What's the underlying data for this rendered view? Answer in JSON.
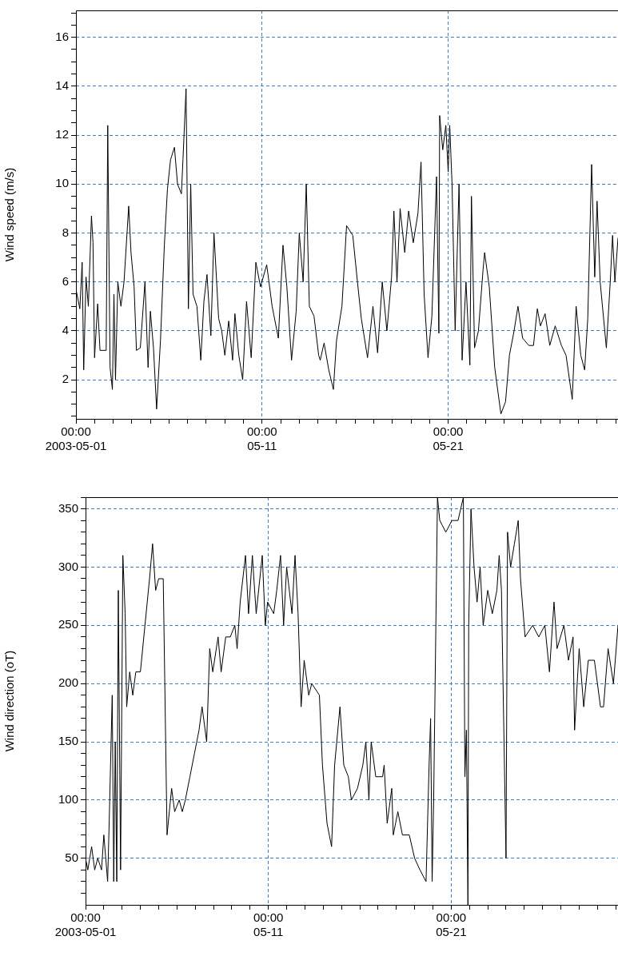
{
  "chart_data": [
    {
      "type": "line",
      "ylabel": "Wind speed (m/s)",
      "color": "#000000",
      "marker": "none",
      "line_style": "solid",
      "grid": true,
      "xlim": [
        "2003-05-01T00:00",
        "2003-05-30T03:00"
      ],
      "ylim": [
        0.4,
        17.1
      ],
      "xticks": [
        {
          "value": "2003-05-01T00:00",
          "label": "00:00\n2003-05-01"
        },
        {
          "value": "2003-05-02T00:00",
          "label": null
        },
        {
          "value": "2003-05-03T00:00",
          "label": null
        },
        {
          "value": "2003-05-04T00:00",
          "label": null
        },
        {
          "value": "2003-05-05T00:00",
          "label": null
        },
        {
          "value": "2003-05-06T00:00",
          "label": null
        },
        {
          "value": "2003-05-07T00:00",
          "label": null
        },
        {
          "value": "2003-05-08T00:00",
          "label": null
        },
        {
          "value": "2003-05-09T00:00",
          "label": null
        },
        {
          "value": "2003-05-10T00:00",
          "label": null
        },
        {
          "value": "2003-05-11T00:00",
          "label": "00:00\n05-11"
        },
        {
          "value": "2003-05-12T00:00",
          "label": null
        },
        {
          "value": "2003-05-13T00:00",
          "label": null
        },
        {
          "value": "2003-05-14T00:00",
          "label": null
        },
        {
          "value": "2003-05-15T00:00",
          "label": null
        },
        {
          "value": "2003-05-16T00:00",
          "label": null
        },
        {
          "value": "2003-05-17T00:00",
          "label": null
        },
        {
          "value": "2003-05-18T00:00",
          "label": null
        },
        {
          "value": "2003-05-19T00:00",
          "label": null
        },
        {
          "value": "2003-05-20T00:00",
          "label": null
        },
        {
          "value": "2003-05-21T00:00",
          "label": "00:00\n05-21"
        },
        {
          "value": "2003-05-22T00:00",
          "label": null
        },
        {
          "value": "2003-05-23T00:00",
          "label": null
        },
        {
          "value": "2003-05-24T00:00",
          "label": null
        },
        {
          "value": "2003-05-25T00:00",
          "label": null
        },
        {
          "value": "2003-05-26T00:00",
          "label": null
        },
        {
          "value": "2003-05-27T00:00",
          "label": null
        },
        {
          "value": "2003-05-28T00:00",
          "label": null
        },
        {
          "value": "2003-05-29T00:00",
          "label": null
        },
        {
          "value": "2003-05-30T00:00",
          "label": null
        }
      ],
      "yticks": [
        {
          "value": 0.5,
          "label": null
        },
        {
          "value": 1,
          "label": null
        },
        {
          "value": 1.5,
          "label": null
        },
        2,
        {
          "value": 2.5,
          "label": null
        },
        {
          "value": 3,
          "label": null
        },
        {
          "value": 3.5,
          "label": null
        },
        4,
        {
          "value": 4.5,
          "label": null
        },
        {
          "value": 5,
          "label": null
        },
        {
          "value": 5.5,
          "label": null
        },
        6,
        {
          "value": 6.5,
          "label": null
        },
        {
          "value": 7,
          "label": null
        },
        {
          "value": 7.5,
          "label": null
        },
        8,
        {
          "value": 8.5,
          "label": null
        },
        {
          "value": 9,
          "label": null
        },
        {
          "value": 9.5,
          "label": null
        },
        10,
        {
          "value": 10.5,
          "label": null
        },
        {
          "value": 11,
          "label": null
        },
        {
          "value": 11.5,
          "label": null
        },
        12,
        {
          "value": 12.5,
          "label": null
        },
        {
          "value": 13,
          "label": null
        },
        {
          "value": 13.5,
          "label": null
        },
        14,
        {
          "value": 14.5,
          "label": null
        },
        {
          "value": 15,
          "label": null
        },
        {
          "value": 15.5,
          "label": null
        },
        16,
        {
          "value": 16.5,
          "label": null
        },
        {
          "value": 17,
          "label": null
        }
      ],
      "x": [
        "2003-05-01T00:00",
        "2003-05-01T05:00",
        "2003-05-01T08:00",
        "2003-05-01T10:00",
        "2003-05-01T13:00",
        "2003-05-01T16:00",
        "2003-05-01T20:00",
        "2003-05-01T22:00",
        "2003-05-02T00:00",
        "2003-05-02T04:00",
        "2003-05-02T07:00",
        "2003-05-02T15:00",
        "2003-05-02T17:00",
        "2003-05-02T20:00",
        "2003-05-02T23:00",
        "2003-05-03T01:00",
        "2003-05-03T03:00",
        "2003-05-03T06:00",
        "2003-05-03T10:00",
        "2003-05-03T14:00",
        "2003-05-03T20:00",
        "2003-05-03T23:00",
        "2003-05-04T03:00",
        "2003-05-04T06:00",
        "2003-05-04T11:00",
        "2003-05-04T17:00",
        "2003-05-04T21:00",
        "2003-05-05T00:00",
        "2003-05-05T04:00",
        "2003-05-05T08:00",
        "2003-05-05T13:00",
        "2003-05-05T18:00",
        "2003-05-05T22:00",
        "2003-05-06T02:00",
        "2003-05-06T07:00",
        "2003-05-06T11:00",
        "2003-05-06T16:00",
        "2003-05-06T18:00",
        "2003-05-06T22:00",
        "2003-05-07T01:00",
        "2003-05-07T04:00",
        "2003-05-07T07:00",
        "2003-05-07T12:00",
        "2003-05-07T17:00",
        "2003-05-07T21:00",
        "2003-05-08T01:00",
        "2003-05-08T06:00",
        "2003-05-08T10:00",
        "2003-05-08T16:00",
        "2003-05-08T20:00",
        "2003-05-09T00:00",
        "2003-05-09T05:00",
        "2003-05-09T10:00",
        "2003-05-09T13:00",
        "2003-05-09T18:00",
        "2003-05-09T23:00",
        "2003-05-10T04:00",
        "2003-05-10T10:00",
        "2003-05-10T16:00",
        "2003-05-10T22:00",
        "2003-05-11T06:00",
        "2003-05-11T13:00",
        "2003-05-11T21:00",
        "2003-05-12T03:00",
        "2003-05-12T08:00",
        "2003-05-12T14:00",
        "2003-05-12T20:00",
        "2003-05-13T00:00",
        "2003-05-13T05:00",
        "2003-05-13T09:00",
        "2003-05-13T13:00",
        "2003-05-13T19:00",
        "2003-05-14T01:00",
        "2003-05-14T03:00",
        "2003-05-14T08:00",
        "2003-05-14T14:00",
        "2003-05-14T20:00",
        "2003-05-15T00:00",
        "2003-05-15T07:00",
        "2003-05-15T13:00",
        "2003-05-15T21:00",
        "2003-05-16T03:00",
        "2003-05-16T08:00",
        "2003-05-16T16:00",
        "2003-05-16T23:00",
        "2003-05-17T05:00",
        "2003-05-17T11:00",
        "2003-05-17T17:00",
        "2003-05-17T23:00",
        "2003-05-18T02:00",
        "2003-05-18T06:00",
        "2003-05-18T10:00",
        "2003-05-18T16:00",
        "2003-05-18T21:00",
        "2003-05-19T03:00",
        "2003-05-19T09:00",
        "2003-05-19T13:00",
        "2003-05-19T17:00",
        "2003-05-19T22:00",
        "2003-05-20T03:00",
        "2003-05-20T09:00",
        "2003-05-20T12:00",
        "2003-05-20T13:00",
        "2003-05-20T17:00",
        "2003-05-20T21:00",
        "2003-05-21T00:00",
        "2003-05-21T02:00",
        "2003-05-21T05:00",
        "2003-05-21T09:00",
        "2003-05-21T14:00",
        "2003-05-21T18:00",
        "2003-05-21T23:00",
        "2003-05-22T04:00",
        "2003-05-22T06:00",
        "2003-05-22T10:00",
        "2003-05-22T15:00",
        "2003-05-22T21:00",
        "2003-05-22T23:00",
        "2003-05-23T05:00",
        "2003-05-23T12:00",
        "2003-05-23T20:00",
        "2003-05-24T02:00",
        "2003-05-24T07:00",
        "2003-05-24T13:00",
        "2003-05-24T18:00",
        "2003-05-25T00:00",
        "2003-05-25T08:00",
        "2003-05-25T14:00",
        "2003-05-25T19:00",
        "2003-05-25T23:00",
        "2003-05-26T05:00",
        "2003-05-26T11:00",
        "2003-05-26T18:00",
        "2003-05-27T02:00",
        "2003-05-27T08:00",
        "2003-05-27T16:00",
        "2003-05-27T21:00",
        "2003-05-28T03:00",
        "2003-05-28T08:00",
        "2003-05-28T12:00",
        "2003-05-28T17:00",
        "2003-05-28T21:00",
        "2003-05-29T00:00",
        "2003-05-29T04:00",
        "2003-05-29T12:00",
        "2003-05-29T17:00",
        "2003-05-29T20:00",
        "2003-05-29T23:00",
        "2003-05-30T03:00"
      ],
      "values": [
        5.7,
        4.9,
        6.8,
        2.4,
        6.2,
        5.0,
        8.7,
        7.6,
        2.9,
        5.1,
        3.2,
        3.2,
        12.4,
        2.5,
        1.6,
        5.5,
        2.0,
        6.0,
        5.0,
        6.0,
        9.1,
        7.2,
        5.8,
        3.2,
        3.3,
        6.0,
        2.5,
        4.8,
        3.3,
        0.8,
        3.6,
        7.5,
        9.8,
        11.0,
        11.5,
        10.0,
        9.6,
        11.0,
        13.9,
        4.9,
        10.0,
        5.5,
        5.0,
        2.8,
        5.2,
        6.3,
        3.8,
        8.0,
        4.5,
        4.0,
        3.0,
        4.4,
        2.8,
        4.7,
        3.0,
        2.0,
        5.2,
        2.9,
        6.8,
        5.8,
        6.7,
        5.0,
        3.7,
        7.5,
        5.8,
        2.8,
        4.8,
        8.0,
        6.0,
        10.0,
        5.0,
        4.6,
        3.0,
        2.8,
        3.5,
        2.4,
        1.6,
        3.6,
        5.0,
        8.3,
        7.9,
        6.0,
        4.5,
        2.9,
        5.0,
        3.1,
        6.0,
        4.0,
        6.2,
        8.9,
        6.0,
        9.0,
        7.2,
        8.9,
        7.6,
        8.8,
        10.9,
        5.5,
        2.9,
        4.6,
        10.3,
        3.9,
        12.8,
        11.4,
        12.4,
        10.5,
        12.4,
        10.0,
        4.0,
        10.0,
        2.8,
        6.0,
        2.6,
        9.5,
        3.3,
        4.0,
        6.5,
        7.2,
        5.8,
        2.5,
        0.6,
        1.1,
        3.0,
        4.0,
        5.0,
        3.7,
        3.4,
        3.4,
        4.9,
        4.2,
        4.7,
        3.4,
        4.2,
        3.4,
        3.0,
        1.2,
        5.0,
        3.0,
        2.4,
        4.5,
        10.8,
        6.2,
        9.3,
        6.0,
        3.3,
        6.0,
        7.9,
        6.0,
        7.8
      ]
    },
    {
      "type": "line",
      "ylabel": "Wind direction (oT)",
      "color": "#000000",
      "marker": "none",
      "line_style": "solid",
      "grid": true,
      "xlim": [
        "2003-05-01T00:00",
        "2003-05-30T03:00"
      ],
      "ylim": [
        10,
        360
      ],
      "xticks": [
        {
          "value": "2003-05-01T00:00",
          "label": "00:00\n2003-05-01"
        },
        {
          "value": "2003-05-02T00:00",
          "label": null
        },
        {
          "value": "2003-05-03T00:00",
          "label": null
        },
        {
          "value": "2003-05-04T00:00",
          "label": null
        },
        {
          "value": "2003-05-05T00:00",
          "label": null
        },
        {
          "value": "2003-05-06T00:00",
          "label": null
        },
        {
          "value": "2003-05-07T00:00",
          "label": null
        },
        {
          "value": "2003-05-08T00:00",
          "label": null
        },
        {
          "value": "2003-05-09T00:00",
          "label": null
        },
        {
          "value": "2003-05-10T00:00",
          "label": null
        },
        {
          "value": "2003-05-11T00:00",
          "label": "00:00\n05-11"
        },
        {
          "value": "2003-05-12T00:00",
          "label": null
        },
        {
          "value": "2003-05-13T00:00",
          "label": null
        },
        {
          "value": "2003-05-14T00:00",
          "label": null
        },
        {
          "value": "2003-05-15T00:00",
          "label": null
        },
        {
          "value": "2003-05-16T00:00",
          "label": null
        },
        {
          "value": "2003-05-17T00:00",
          "label": null
        },
        {
          "value": "2003-05-18T00:00",
          "label": null
        },
        {
          "value": "2003-05-19T00:00",
          "label": null
        },
        {
          "value": "2003-05-20T00:00",
          "label": null
        },
        {
          "value": "2003-05-21T00:00",
          "label": "00:00\n05-21"
        },
        {
          "value": "2003-05-22T00:00",
          "label": null
        },
        {
          "value": "2003-05-23T00:00",
          "label": null
        },
        {
          "value": "2003-05-24T00:00",
          "label": null
        },
        {
          "value": "2003-05-25T00:00",
          "label": null
        },
        {
          "value": "2003-05-26T00:00",
          "label": null
        },
        {
          "value": "2003-05-27T00:00",
          "label": null
        },
        {
          "value": "2003-05-28T00:00",
          "label": null
        },
        {
          "value": "2003-05-29T00:00",
          "label": null
        },
        {
          "value": "2003-05-30T00:00",
          "label": null
        }
      ],
      "yticks": [
        {
          "value": 20,
          "label": null
        },
        {
          "value": 30,
          "label": null
        },
        {
          "value": 40,
          "label": null
        },
        50,
        {
          "value": 60,
          "label": null
        },
        {
          "value": 70,
          "label": null
        },
        {
          "value": 80,
          "label": null
        },
        {
          "value": 90,
          "label": null
        },
        100,
        {
          "value": 110,
          "label": null
        },
        {
          "value": 120,
          "label": null
        },
        {
          "value": 130,
          "label": null
        },
        {
          "value": 140,
          "label": null
        },
        150,
        {
          "value": 160,
          "label": null
        },
        {
          "value": 170,
          "label": null
        },
        {
          "value": 180,
          "label": null
        },
        {
          "value": 190,
          "label": null
        },
        200,
        {
          "value": 210,
          "label": null
        },
        {
          "value": 220,
          "label": null
        },
        {
          "value": 230,
          "label": null
        },
        {
          "value": 240,
          "label": null
        },
        250,
        {
          "value": 260,
          "label": null
        },
        {
          "value": 270,
          "label": null
        },
        {
          "value": 280,
          "label": null
        },
        {
          "value": 290,
          "label": null
        },
        300,
        {
          "value": 310,
          "label": null
        },
        {
          "value": 320,
          "label": null
        },
        {
          "value": 330,
          "label": null
        },
        {
          "value": 340,
          "label": null
        },
        350,
        {
          "value": 360,
          "label": null
        }
      ],
      "x": [
        "2003-05-01T00:00",
        "2003-05-01T03:00",
        "2003-05-01T08:00",
        "2003-05-01T12:00",
        "2003-05-01T16:00",
        "2003-05-01T21:00",
        "2003-05-02T00:00",
        "2003-05-02T05:00",
        "2003-05-02T07:00",
        "2003-05-02T11:00",
        "2003-05-02T13:00",
        "2003-05-02T15:00",
        "2003-05-02T17:00",
        "2003-05-02T19:00",
        "2003-05-02T22:00",
        "2003-05-03T01:00",
        "2003-05-03T04:00",
        "2003-05-03T06:00",
        "2003-05-03T10:00",
        "2003-05-03T14:00",
        "2003-05-03T18:00",
        "2003-05-04T00:00",
        "2003-05-04T06:00",
        "2003-05-04T12:00",
        "2003-05-04T16:00",
        "2003-05-04T20:00",
        "2003-05-05T00:00",
        "2003-05-05T06:00",
        "2003-05-05T11:00",
        "2003-05-05T17:00",
        "2003-05-05T21:00",
        "2003-05-06T03:00",
        "2003-05-06T07:00",
        "2003-05-06T11:00",
        "2003-05-06T17:00",
        "2003-05-06T23:00",
        "2003-05-07T05:00",
        "2003-05-07T09:00",
        "2003-05-07T15:00",
        "2003-05-07T19:00",
        "2003-05-07T23:00",
        "2003-05-08T06:00",
        "2003-05-08T10:00",
        "2003-05-08T16:00",
        "2003-05-08T22:00",
        "2003-05-09T04:00",
        "2003-05-09T07:00",
        "2003-05-09T11:00",
        "2003-05-09T18:00",
        "2003-05-09T22:00",
        "2003-05-10T03:00",
        "2003-05-10T08:00",
        "2003-05-10T16:00",
        "2003-05-10T20:00",
        "2003-05-10T23:00",
        "2003-05-11T07:00",
        "2003-05-11T11:00",
        "2003-05-11T16:00",
        "2003-05-11T20:00",
        "2003-05-12T00:00",
        "2003-05-12T07:00",
        "2003-05-12T11:00",
        "2003-05-12T15:00",
        "2003-05-12T19:00",
        "2003-05-12T23:00",
        "2003-05-13T05:00",
        "2003-05-13T09:00",
        "2003-05-13T19:00",
        "2003-05-13T23:00",
        "2003-05-14T05:00",
        "2003-05-14T11:00",
        "2003-05-14T15:00",
        "2003-05-14T22:00",
        "2003-05-15T03:00",
        "2003-05-15T09:00",
        "2003-05-15T13:00",
        "2003-05-15T21:00",
        "2003-05-16T04:00",
        "2003-05-16T08:00",
        "2003-05-16T12:00",
        "2003-05-16T15:00",
        "2003-05-16T21:00",
        "2003-05-17T06:00",
        "2003-05-17T08:00",
        "2003-05-17T12:00",
        "2003-05-17T18:00",
        "2003-05-17T20:00",
        "2003-05-18T02:00",
        "2003-05-18T08:00",
        "2003-05-18T17:00",
        "2003-05-19T00:00",
        "2003-05-19T07:00",
        "2003-05-19T15:00",
        "2003-05-19T19:00",
        "2003-05-19T21:00",
        "2003-05-19T23:00",
        "2003-05-20T01:00",
        "2003-05-20T06:00",
        "2003-05-20T09:00",
        "2003-05-20T17:00",
        "2003-05-21T01:00",
        "2003-05-21T09:00",
        "2003-05-21T16:00",
        "2003-05-21T18:00",
        "2003-05-21T20:00",
        "2003-05-21T22:00",
        "2003-05-21T23:00",
        "2003-05-22T02:00",
        "2003-05-22T06:00",
        "2003-05-22T10:00",
        "2003-05-22T14:00",
        "2003-05-22T18:00",
        "2003-05-23T00:00",
        "2003-05-23T06:00",
        "2003-05-23T12:00",
        "2003-05-23T15:00",
        "2003-05-23T18:00",
        "2003-05-24T00:00",
        "2003-05-24T02:00",
        "2003-05-24T06:00",
        "2003-05-24T11:00",
        "2003-05-24T16:00",
        "2003-05-24T19:00",
        "2003-05-25T01:00",
        "2003-05-25T11:00",
        "2003-05-25T19:00",
        "2003-05-26T03:00",
        "2003-05-26T09:00",
        "2003-05-26T15:00",
        "2003-05-26T19:00",
        "2003-05-27T04:00",
        "2003-05-27T10:00",
        "2003-05-27T16:00",
        "2003-05-27T18:00",
        "2003-05-28T00:00",
        "2003-05-28T06:00",
        "2003-05-28T12:00",
        "2003-05-28T20:00",
        "2003-05-29T04:00",
        "2003-05-29T08:00",
        "2003-05-29T14:00",
        "2003-05-29T21:00",
        "2003-05-30T03:00"
      ],
      "values": [
        50,
        40,
        60,
        40,
        50,
        40,
        70,
        30,
        80,
        190,
        30,
        150,
        30,
        280,
        40,
        310,
        260,
        180,
        210,
        190,
        210,
        210,
        250,
        290,
        320,
        280,
        290,
        290,
        70,
        110,
        90,
        100,
        90,
        100,
        120,
        140,
        160,
        180,
        150,
        230,
        210,
        240,
        210,
        240,
        240,
        250,
        230,
        270,
        310,
        260,
        310,
        260,
        310,
        250,
        270,
        260,
        280,
        310,
        250,
        300,
        260,
        310,
        260,
        180,
        220,
        190,
        200,
        190,
        130,
        80,
        60,
        130,
        180,
        130,
        120,
        100,
        110,
        130,
        150,
        100,
        150,
        120,
        120,
        130,
        80,
        110,
        70,
        90,
        70,
        70,
        50,
        40,
        30,
        130,
        170,
        30,
        100,
        360,
        340,
        330,
        340,
        340,
        360,
        120,
        160,
        10,
        250,
        350,
        300,
        270,
        300,
        250,
        280,
        260,
        280,
        310,
        280,
        50,
        330,
        300,
        320,
        340,
        290,
        240,
        250,
        240,
        250,
        210,
        270,
        230,
        250,
        220,
        240,
        160,
        230,
        180,
        220,
        220,
        180,
        180,
        230,
        200,
        250
      ]
    }
  ]
}
